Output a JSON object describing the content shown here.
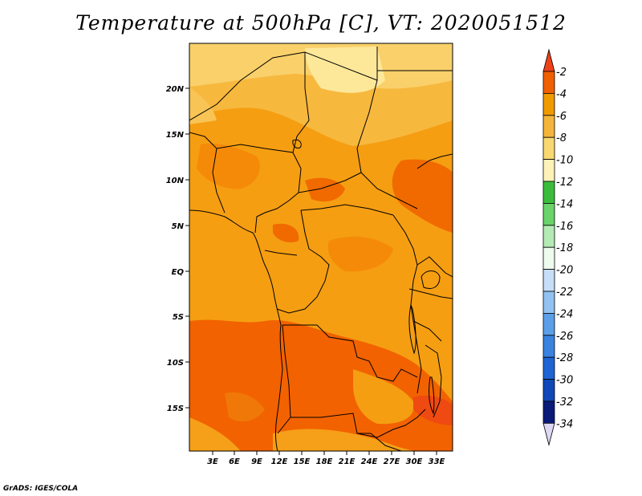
{
  "title": "Temperature at 500hPa [C], VT: 2020051512",
  "credit": "GrADS: IGES/COLA",
  "lat_labels": [
    "20N",
    "15N",
    "10N",
    "5N",
    "EQ",
    "5S",
    "10S",
    "15S"
  ],
  "lon_labels": [
    "3E",
    "6E",
    "9E",
    "12E",
    "15E",
    "18E",
    "21E",
    "24E",
    "27E",
    "30E",
    "33E"
  ],
  "colorbar": {
    "labels": [
      "-2",
      "-4",
      "-6",
      "-8",
      "-10",
      "-12",
      "-14",
      "-16",
      "-18",
      "-20",
      "-22",
      "-24",
      "-26",
      "-28",
      "-30",
      "-32",
      "-34"
    ],
    "colors": [
      "#f0401a",
      "#f06000",
      "#f09a00",
      "#f5b53a",
      "#f8d870",
      "#fff2b8",
      "#3bbd3b",
      "#6ad46a",
      "#b4eab4",
      "#eefbee",
      "#c6def8",
      "#92c2f2",
      "#5b9fe8",
      "#3a82e0",
      "#1f64d4",
      "#1048b8",
      "#0a1a78",
      "#ded8f4"
    ]
  }
}
